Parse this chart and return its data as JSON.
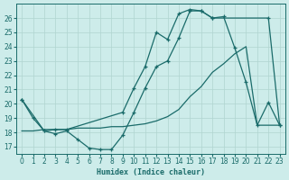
{
  "xlabel": "Humidex (Indice chaleur)",
  "xlim": [
    -0.5,
    23.5
  ],
  "ylim": [
    16.5,
    27.0
  ],
  "yticks": [
    17,
    18,
    19,
    20,
    21,
    22,
    23,
    24,
    25,
    26
  ],
  "xticks": [
    0,
    1,
    2,
    3,
    4,
    5,
    6,
    7,
    8,
    9,
    10,
    11,
    12,
    13,
    14,
    15,
    16,
    17,
    18,
    19,
    20,
    21,
    22,
    23
  ],
  "bg_color": "#cdecea",
  "grid_color": "#b0d4d0",
  "line_color": "#1a6b6a",
  "line1_x": [
    0,
    1,
    2,
    3,
    4,
    5,
    6,
    7,
    8,
    9,
    10,
    11,
    12,
    13,
    14,
    15,
    16,
    17,
    18,
    19,
    20,
    21,
    22,
    23
  ],
  "line1_y": [
    20.3,
    19.0,
    18.1,
    17.9,
    18.1,
    17.5,
    16.9,
    16.8,
    16.8,
    17.8,
    19.4,
    21.1,
    22.6,
    23.0,
    24.6,
    26.5,
    26.5,
    26.0,
    26.1,
    23.9,
    21.5,
    18.5,
    20.1,
    18.5
  ],
  "line2_x": [
    0,
    2,
    3,
    4,
    9,
    10,
    11,
    12,
    13,
    14,
    15,
    16,
    17,
    22,
    23
  ],
  "line2_y": [
    20.3,
    18.1,
    18.2,
    18.2,
    19.4,
    21.1,
    22.6,
    25.0,
    24.5,
    26.3,
    26.6,
    26.5,
    26.0,
    26.0,
    18.5
  ],
  "line3_x": [
    0,
    1,
    2,
    3,
    4,
    5,
    6,
    7,
    8,
    9,
    10,
    11,
    12,
    13,
    14,
    15,
    16,
    17,
    18,
    19,
    20,
    21,
    22,
    23
  ],
  "line3_y": [
    18.1,
    18.1,
    18.2,
    18.2,
    18.2,
    18.3,
    18.3,
    18.3,
    18.4,
    18.4,
    18.5,
    18.6,
    18.8,
    19.1,
    19.6,
    20.5,
    21.2,
    22.2,
    22.8,
    23.5,
    24.0,
    18.5,
    18.5,
    18.5
  ]
}
